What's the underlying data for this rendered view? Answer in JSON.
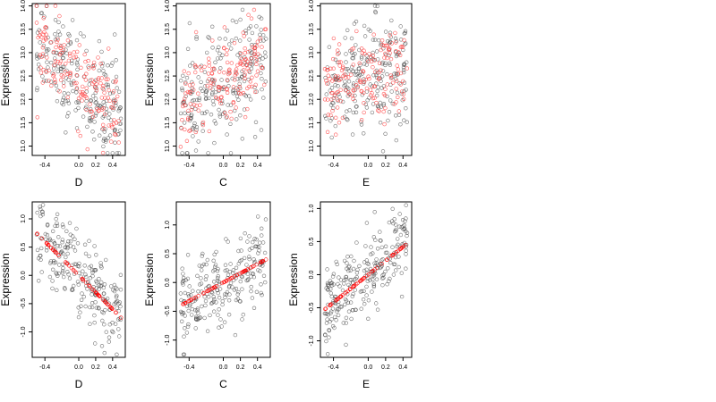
{
  "chart_data": [
    {
      "type": "scatter",
      "xlabel": "D",
      "ylabel": "Expression",
      "xlim": [
        -0.55,
        0.55
      ],
      "ylim": [
        10.8,
        14.05
      ],
      "xticks": [
        -0.4,
        0.0,
        0.2,
        0.4
      ],
      "xtick_labels": [
        "-0.4",
        "0.0",
        "0.2",
        "0.4"
      ],
      "yticks": [
        11.0,
        11.5,
        12.0,
        12.5,
        13.0,
        13.5,
        14.0
      ],
      "ytick_labels": [
        "11.0",
        "11.5",
        "12.0",
        "12.5",
        "13.0",
        "13.5",
        "14.0"
      ],
      "series": [
        {
          "color": "#404040",
          "generator": {
            "x_range": [
              -0.5,
              0.5
            ],
            "n": 220,
            "slope": -1.4,
            "intercept": 12.4,
            "noise": 0.55
          }
        },
        {
          "color": "#ff4040",
          "generator": {
            "x_range": [
              -0.5,
              0.5
            ],
            "n": 160,
            "slope": -1.6,
            "intercept": 12.4,
            "noise": 0.45
          }
        }
      ]
    },
    {
      "type": "scatter",
      "xlabel": "C",
      "ylabel": "Expression",
      "xlim": [
        -0.55,
        0.55
      ],
      "ylim": [
        10.8,
        14.05
      ],
      "xticks": [
        -0.4,
        0.0,
        0.2,
        0.4
      ],
      "xtick_labels": [
        "-0.4",
        "0.0",
        "0.2",
        "0.4"
      ],
      "yticks": [
        11.0,
        11.5,
        12.0,
        12.5,
        13.0,
        13.5,
        14.0
      ],
      "ytick_labels": [
        "11.0",
        "11.5",
        "12.0",
        "12.5",
        "13.0",
        "13.5",
        "14.0"
      ],
      "series": [
        {
          "color": "#404040",
          "generator": {
            "x_range": [
              -0.5,
              0.5
            ],
            "n": 220,
            "slope": 1.3,
            "intercept": 12.3,
            "noise": 0.6
          }
        },
        {
          "color": "#ff4040",
          "generator": {
            "x_range": [
              -0.5,
              0.5
            ],
            "n": 160,
            "slope": 1.2,
            "intercept": 12.4,
            "noise": 0.45
          }
        }
      ]
    },
    {
      "type": "scatter",
      "xlabel": "E",
      "ylabel": "Expression",
      "xlim": [
        -0.55,
        0.5
      ],
      "ylim": [
        10.8,
        14.05
      ],
      "xticks": [
        -0.4,
        0.0,
        0.2,
        0.4
      ],
      "xtick_labels": [
        "-0.4",
        "0.0",
        "0.2",
        "0.4"
      ],
      "yticks": [
        11.0,
        11.5,
        12.0,
        12.5,
        13.0,
        13.5,
        14.0
      ],
      "ytick_labels": [
        "11.0",
        "11.5",
        "12.0",
        "12.5",
        "13.0",
        "13.5",
        "14.0"
      ],
      "series": [
        {
          "color": "#404040",
          "generator": {
            "x_range": [
              -0.5,
              0.45
            ],
            "n": 230,
            "slope": 0.6,
            "intercept": 12.5,
            "noise": 0.6
          }
        },
        {
          "color": "#ff4040",
          "generator": {
            "x_range": [
              -0.5,
              0.45
            ],
            "n": 160,
            "slope": 0.4,
            "intercept": 12.4,
            "noise": 0.5
          }
        }
      ]
    },
    {
      "type": "scatter",
      "xlabel": "D",
      "ylabel": "Expression",
      "xlim": [
        -0.55,
        0.55
      ],
      "ylim": [
        -1.45,
        1.3
      ],
      "xticks": [
        -0.4,
        0.0,
        0.2,
        0.4
      ],
      "xtick_labels": [
        "-0.4",
        "0.0",
        "0.2",
        "0.4"
      ],
      "yticks": [
        -1.0,
        -0.5,
        0.0,
        0.5,
        1.0
      ],
      "ytick_labels": [
        "-1.0",
        "-0.5",
        "0.0",
        "0.5",
        "1.0"
      ],
      "series": [
        {
          "color": "#404040",
          "generator": {
            "x_range": [
              -0.5,
              0.5
            ],
            "n": 230,
            "slope": -1.5,
            "intercept": 0.0,
            "noise": 0.35
          }
        },
        {
          "color": "#ff0000",
          "generator": {
            "x_range": [
              -0.5,
              0.5
            ],
            "n": 60,
            "slope": -1.5,
            "intercept": 0.0,
            "noise": 0.0
          }
        }
      ]
    },
    {
      "type": "scatter",
      "xlabel": "C",
      "ylabel": "Expression",
      "xlim": [
        -0.55,
        0.55
      ],
      "ylim": [
        -1.3,
        1.4
      ],
      "xticks": [
        -0.4,
        0.0,
        0.2,
        0.4
      ],
      "xtick_labels": [
        "-0.4",
        "0.0",
        "0.2",
        "0.4"
      ],
      "yticks": [
        -1.0,
        -0.5,
        0.0,
        0.5,
        1.0
      ],
      "ytick_labels": [
        "-1.0",
        "-0.5",
        "0.0",
        "0.5",
        "1.0"
      ],
      "series": [
        {
          "color": "#404040",
          "generator": {
            "x_range": [
              -0.5,
              0.5
            ],
            "n": 230,
            "slope": 0.8,
            "intercept": 0.0,
            "noise": 0.35
          }
        },
        {
          "color": "#ff0000",
          "generator": {
            "x_range": [
              -0.5,
              0.5
            ],
            "n": 60,
            "slope": 0.8,
            "intercept": 0.0,
            "noise": 0.0
          }
        }
      ]
    },
    {
      "type": "scatter",
      "xlabel": "E",
      "ylabel": "Expression",
      "xlim": [
        -0.55,
        0.5
      ],
      "ylim": [
        -1.25,
        1.1
      ],
      "xticks": [
        -0.4,
        0.0,
        0.2,
        0.4
      ],
      "xtick_labels": [
        "-0.4",
        "0.0",
        "0.2",
        "0.4"
      ],
      "yticks": [
        -1.0,
        -0.5,
        0.0,
        0.5,
        1.0
      ],
      "ytick_labels": [
        "-1.0",
        "-0.5",
        "0.0",
        "0.5",
        "1.0"
      ],
      "series": [
        {
          "color": "#404040",
          "generator": {
            "x_range": [
              -0.5,
              0.45
            ],
            "n": 240,
            "slope": 1.05,
            "intercept": 0.0,
            "noise": 0.32
          }
        },
        {
          "color": "#ff0000",
          "generator": {
            "x_range": [
              -0.5,
              0.45
            ],
            "n": 60,
            "slope": 1.05,
            "intercept": 0.0,
            "noise": 0.0
          }
        }
      ]
    }
  ]
}
